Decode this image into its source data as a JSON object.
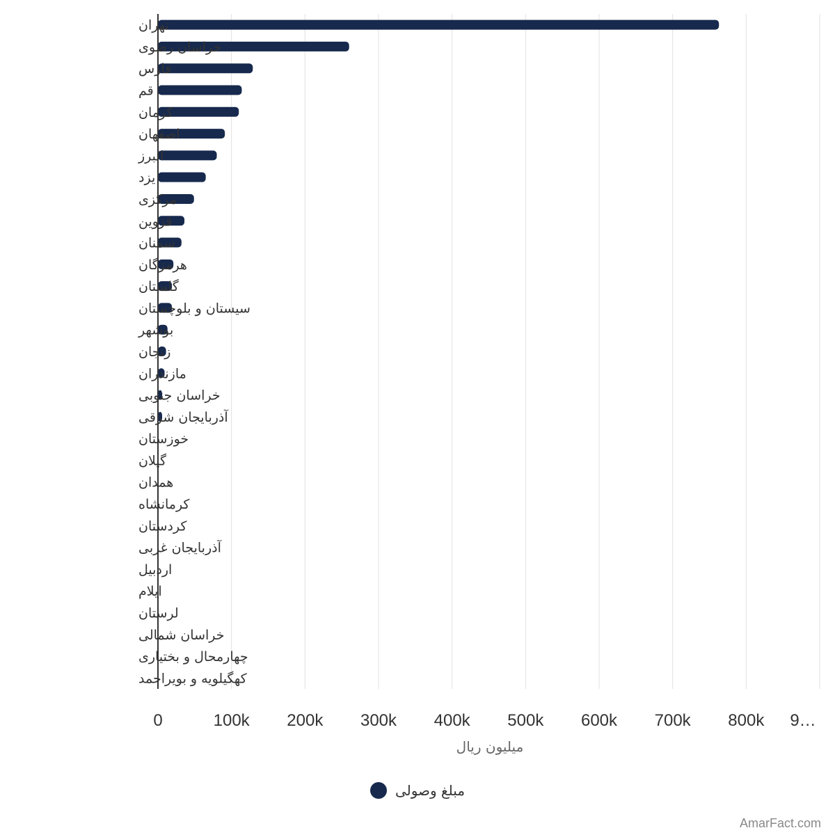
{
  "chart_data": {
    "type": "bar",
    "orientation": "horizontal",
    "categories": [
      "تهران",
      "خراسان رضوی",
      "فارس",
      "قم",
      "کرمان",
      "اصفهان",
      "البرز",
      "یزد",
      "مرکزی",
      "قزوین",
      "سمنان",
      "هرمزگان",
      "گلستان",
      "سیستان و بلوچستان",
      "بوشهر",
      "زنجان",
      "مازندران",
      "خراسان جنوبی",
      "آذربایجان شرقی",
      "خوزستان",
      "گیلان",
      "همدان",
      "کرمانشاه",
      "کردستان",
      "آذربایجان غربی",
      "اردبیل",
      "ایلام",
      "لرستان",
      "خراسان شمالی",
      "چهارمحال و بختیاری",
      "کهگیلویه و بویراحمد"
    ],
    "series": [
      {
        "name": "مبلغ وصولی",
        "color": "#17294d",
        "values": [
          763000,
          260000,
          129000,
          114000,
          110000,
          91000,
          80000,
          65000,
          49000,
          36000,
          32000,
          21000,
          19000,
          19000,
          13000,
          11000,
          9000,
          3000,
          2500,
          0,
          0,
          0,
          0,
          0,
          0,
          0,
          0,
          0,
          0,
          0,
          0
        ]
      }
    ],
    "xlim": [
      0,
      900000
    ],
    "xticks": [
      "0",
      "100k",
      "200k",
      "300k",
      "400k",
      "500k",
      "600k",
      "700k",
      "800k",
      "9…"
    ],
    "xlabel": "میلیون ریال",
    "grid": true,
    "legend_position": "bottom-center"
  },
  "legend": {
    "label": "مبلغ وصولی",
    "color": "#17294d"
  },
  "credit": "AmarFact.com"
}
